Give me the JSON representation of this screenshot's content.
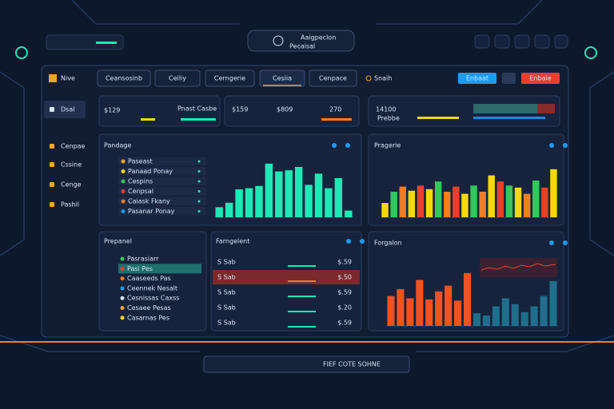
{
  "header": {
    "title": "Aaigpeclon",
    "subtitle": "Pecaisal"
  },
  "nav": {
    "logo": "Nive",
    "tabs": [
      "Ceansosinb",
      "Ceiliy",
      "Cerngerie",
      "Cesiia",
      "Cenpace"
    ],
    "search": "Snaih",
    "buttons": [
      "Enbaat",
      "Enbaie"
    ]
  },
  "sidebar": [
    "Dsal",
    "Cenpae",
    "Cssine",
    "Cenge",
    "Pashil"
  ],
  "stats": [
    {
      "value": "$129",
      "note": "Pnast Casbe"
    },
    {
      "value": "$159"
    },
    {
      "value": "$809"
    },
    {
      "value": "270"
    },
    {
      "value": "14100",
      "note": "Prebbe"
    }
  ],
  "panels": [
    {
      "title": "Pandage",
      "items": [
        "Paseast",
        "Panaad Ponay",
        "Cespins",
        "Cenpsal",
        "Caiask Fkany",
        "Pasanar Ponay"
      ],
      "ylim": [
        0,
        100
      ],
      "values": [
        18,
        26,
        50,
        52,
        56,
        96,
        82,
        84,
        90,
        58,
        78,
        52,
        70,
        12
      ],
      "color": "#1de9b6"
    },
    {
      "title": "Pragerie",
      "ylim": [
        0,
        100
      ],
      "values": [
        28,
        50,
        60,
        52,
        62,
        55,
        70,
        50,
        60,
        46,
        62,
        50,
        82,
        70,
        62,
        58,
        46,
        72,
        58,
        94
      ],
      "colors": [
        "#f5d90a",
        "#31c95b",
        "#f57c21",
        "#f5d90a",
        "#e8402e",
        "#f5d90a",
        "#31c95b",
        "#f57c21",
        "#e8402e",
        "#f5d90a",
        "#31c95b",
        "#f57c21",
        "#f5d90a",
        "#e8402e",
        "#31c95b",
        "#f5d90a",
        "#f57c21",
        "#31c95b",
        "#e8402e",
        "#f5d90a"
      ]
    },
    {
      "title": "Prepanel",
      "items": [
        "Pasrasiarr",
        "Pasi Pes",
        "Caaseeds Pas",
        "Ceennek Nesalt",
        "Cesnissas Caxss",
        "Cesaee Pesas",
        "Casarnas Pes"
      ]
    },
    {
      "title": "Farngelent",
      "rows": [
        [
          "S Sab",
          "$.59"
        ],
        [
          "S Sab",
          "$.50"
        ],
        [
          "S Sab",
          "$.59"
        ],
        [
          "S Sab",
          "$.20"
        ],
        [
          "S Sab",
          "$.59"
        ]
      ]
    },
    {
      "title": "Forgalon",
      "ylim": [
        0,
        100
      ],
      "values": [
        52,
        64,
        48,
        80,
        46,
        60,
        70,
        44,
        92,
        22,
        18,
        34,
        48,
        38,
        24,
        34,
        52,
        78
      ],
      "colors": [
        "#f4511e",
        "#f4511e",
        "#f4511e",
        "#f4511e",
        "#f4511e",
        "#f4511e",
        "#f4511e",
        "#f4511e",
        "#f4511e",
        "#1f6f8b",
        "#1f6f8b",
        "#1f6f8b",
        "#1f6f8b",
        "#1f6f8b",
        "#1f6f8b",
        "#1f6f8b",
        "#1f6f8b",
        "#1f6f8b"
      ]
    }
  ],
  "footer": "FIEF COTE SOHNE"
}
